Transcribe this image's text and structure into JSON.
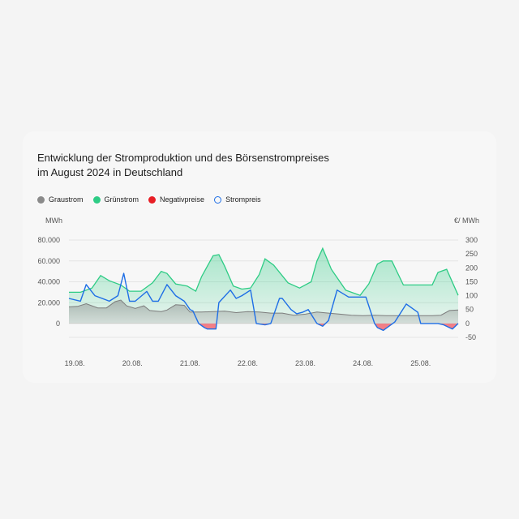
{
  "chart_data": {
    "type": "area",
    "title": "Entwicklung der Stromproduktion und des Börsenstrompreises",
    "subtitle": "im August 2024 in Deutschland",
    "ylabel_left": "MWh",
    "ylabel_right": "€/ MWh",
    "left_ticks": [
      "80.000",
      "60.000",
      "40.000",
      "20.000",
      "0"
    ],
    "right_ticks": [
      "300",
      "250",
      "200",
      "150",
      "100",
      "50",
      "0",
      "-50"
    ],
    "x_ticks": [
      "19.08.",
      "20.08.",
      "21.08.",
      "22.08.",
      "23.08.",
      "24.08.",
      "25.08."
    ],
    "ylim_left": [
      -13200,
      80000
    ],
    "ylim_right": [
      -50,
      300
    ],
    "xlim_days": [
      -0.1,
      6.65
    ],
    "legend": [
      {
        "name": "Graustrom",
        "color": "#8a8a8a",
        "shape": "filled"
      },
      {
        "name": "Grünstrom",
        "color": "#2ecc85",
        "shape": "filled"
      },
      {
        "name": "Negativpreise",
        "color": "#e81e25",
        "shape": "filled"
      },
      {
        "name": "Strompreis",
        "color": "#1e6ee6",
        "shape": "ring"
      }
    ],
    "series": [
      {
        "name": "Graustrom",
        "unit": "MWh",
        "color": "#9a9a9a",
        "x": [
          -0.1,
          0.05,
          0.2,
          0.4,
          0.55,
          0.7,
          0.8,
          0.9,
          1.05,
          1.2,
          1.3,
          1.5,
          1.6,
          1.75,
          1.9,
          2.0,
          2.2,
          2.4,
          2.6,
          2.8,
          3.0,
          3.2,
          3.4,
          3.6,
          3.8,
          4.0,
          4.2,
          4.4,
          4.6,
          4.8,
          5.0,
          5.2,
          5.4,
          5.6,
          5.8,
          6.0,
          6.2,
          6.35,
          6.5,
          6.65
        ],
        "values": [
          16000,
          16500,
          19000,
          15000,
          15000,
          21000,
          22500,
          17000,
          14500,
          17000,
          12500,
          11500,
          13000,
          18000,
          17500,
          11000,
          11000,
          11500,
          12000,
          10500,
          11500,
          11000,
          10000,
          10000,
          8000,
          9000,
          11000,
          10000,
          9000,
          8000,
          7500,
          8000,
          7500,
          7500,
          7500,
          7500,
          7500,
          8000,
          12500,
          13000
        ]
      },
      {
        "name": "Grünstrom",
        "unit": "MWh",
        "color": "#2ecc85",
        "x": [
          -0.1,
          0.1,
          0.3,
          0.45,
          0.6,
          0.8,
          0.95,
          1.15,
          1.35,
          1.5,
          1.6,
          1.75,
          1.95,
          2.1,
          2.2,
          2.3,
          2.4,
          2.5,
          2.6,
          2.75,
          2.9,
          3.05,
          3.2,
          3.3,
          3.45,
          3.7,
          3.9,
          4.1,
          4.2,
          4.3,
          4.45,
          4.7,
          4.9,
          4.95,
          5.1,
          5.25,
          5.35,
          5.5,
          5.7,
          5.9,
          6.05,
          6.2,
          6.3,
          6.45,
          6.65
        ],
        "values": [
          30000,
          30000,
          34000,
          46000,
          41000,
          37000,
          31000,
          31000,
          39000,
          50000,
          48000,
          38000,
          36000,
          31000,
          45000,
          55000,
          65000,
          66000,
          55000,
          36000,
          33000,
          34000,
          47000,
          62000,
          56000,
          39000,
          34000,
          40000,
          60000,
          72000,
          52000,
          32000,
          28000,
          27000,
          38000,
          57000,
          60000,
          60000,
          37000,
          37000,
          37000,
          37000,
          49000,
          52000,
          27000
        ]
      },
      {
        "name": "Strompreis",
        "unit": "€/MWh",
        "color": "#1e6ee6",
        "x": [
          -0.1,
          0.1,
          0.2,
          0.35,
          0.6,
          0.75,
          0.85,
          0.95,
          1.05,
          1.25,
          1.35,
          1.45,
          1.6,
          1.75,
          1.9,
          2.0,
          2.05,
          2.15,
          2.25,
          2.3,
          2.45,
          2.5,
          2.7,
          2.8,
          2.9,
          3.05,
          3.15,
          3.3,
          3.4,
          3.55,
          3.6,
          3.75,
          3.85,
          3.95,
          4.05,
          4.2,
          4.3,
          4.4,
          4.55,
          4.75,
          4.85,
          4.95,
          5.05,
          5.2,
          5.25,
          5.35,
          5.55,
          5.75,
          5.95,
          6.0,
          6.2,
          6.3,
          6.4,
          6.55,
          6.65
        ],
        "values": [
          90,
          80,
          140,
          100,
          80,
          100,
          180,
          80,
          80,
          115,
          80,
          80,
          140,
          100,
          80,
          50,
          45,
          0,
          -15,
          -20,
          -20,
          75,
          120,
          90,
          100,
          120,
          0,
          -5,
          0,
          90,
          90,
          50,
          35,
          40,
          50,
          0,
          -10,
          10,
          120,
          95,
          95,
          95,
          95,
          0,
          -15,
          -25,
          5,
          70,
          40,
          0,
          0,
          0,
          -5,
          -20,
          0
        ]
      }
    ],
    "negative_price_segments": [
      {
        "from": 2.2,
        "to": 2.5
      },
      {
        "from": 3.15,
        "to": 3.4
      },
      {
        "from": 4.25,
        "to": 4.5
      },
      {
        "from": 5.2,
        "to": 5.55
      },
      {
        "from": 6.3,
        "to": 6.65
      }
    ]
  }
}
